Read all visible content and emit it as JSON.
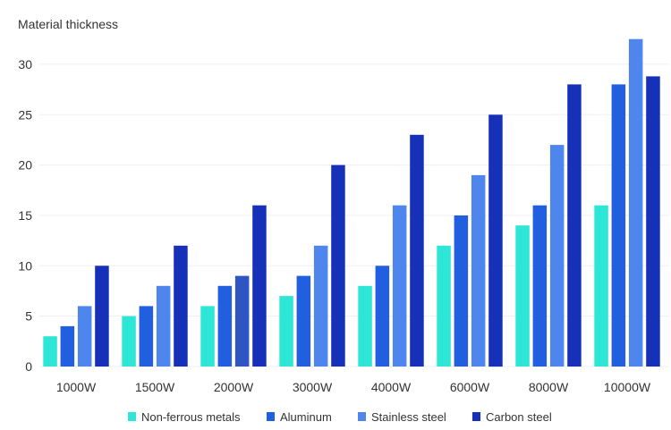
{
  "chart_data": {
    "type": "bar",
    "title": "",
    "ylabel": "Material thickness",
    "xlabel": "",
    "categories": [
      "1000W",
      "1500W",
      "2000W",
      "3000W",
      "4000W",
      "6000W",
      "8000W",
      "10000W"
    ],
    "yticks": [
      "0",
      "5",
      "10",
      "15",
      "20",
      "25",
      "30"
    ],
    "ylim": [
      0,
      33
    ],
    "grid": true,
    "legend_position": "bottom",
    "series": [
      {
        "name": "Non-ferrous metals",
        "color": "#2ee6d6",
        "values": [
          3,
          5,
          6,
          7,
          8,
          12,
          14,
          16
        ]
      },
      {
        "name": "Aluminum",
        "color": "#1f5fe0",
        "values": [
          4,
          6,
          8,
          9,
          10,
          15,
          16,
          28
        ]
      },
      {
        "name": "Stainless steel",
        "color": "#4f86ee",
        "values": [
          6,
          8,
          9,
          12,
          16,
          19,
          22,
          32.5
        ]
      },
      {
        "name": "Carbon steel",
        "color": "#1630b8",
        "values": [
          10,
          12,
          16,
          20,
          23,
          25,
          28,
          28.8
        ]
      }
    ]
  }
}
